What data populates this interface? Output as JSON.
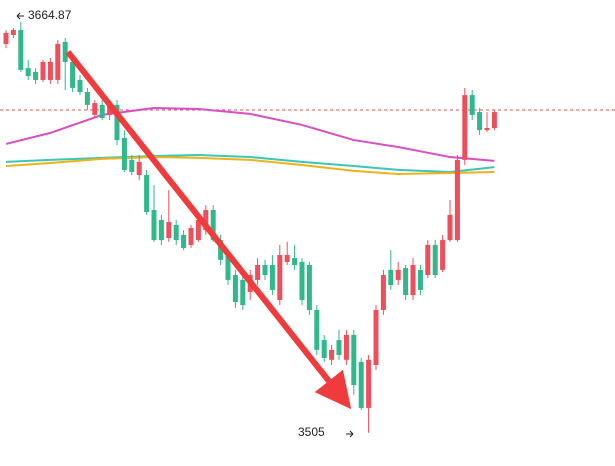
{
  "chart_data": {
    "type": "candlestick",
    "up_color": "#ef4f5b",
    "down_color": "#2fb88c",
    "ylim": [
      3492.1,
      3673.4
    ],
    "open": [
      3656.3,
      3659.8,
      3661.7,
      3646.9,
      3645.4,
      3642.3,
      3642.3,
      3642.3,
      3657.1,
      3649.3,
      3642.3,
      3637.6,
      3628.7,
      3632.6,
      3628.7,
      3632.6,
      3619.7,
      3611.2,
      3605.3,
      3605.3,
      3591.7,
      3587.8,
      3580.8,
      3585.9,
      3582.0,
      3578.1,
      3580.0,
      3583.9,
      3591.7,
      3580.0,
      3574.2,
      3566.4,
      3564.5,
      3559.8,
      3564.5,
      3570.3,
      3570.3,
      3556.7,
      3571.5,
      3573.0,
      3571.5,
      3570.3,
      3552.8,
      3541.1,
      3533.4,
      3541.1,
      3533.4,
      3543.1,
      3532.6,
      3514.7,
      3531.4,
      3552.8,
      3568.4,
      3564.5,
      3569.1,
      3558.6,
      3568.4,
      3566.4,
      3578.1,
      3568.4,
      3580.0,
      3580.0,
      3611.2,
      3636.4,
      3629.8,
      3622.8,
      3623.6
    ],
    "high": [
      3661.7,
      3662.5,
      3664.87,
      3650.1,
      3646.9,
      3650.1,
      3650.8,
      3657.8,
      3658.6,
      3650.8,
      3644.2,
      3639.2,
      3634.5,
      3634.5,
      3634.5,
      3634.5,
      3622.8,
      3613.1,
      3613.1,
      3607.3,
      3601.4,
      3589.8,
      3599.5,
      3587.8,
      3583.9,
      3585.9,
      3589.8,
      3593.6,
      3593.6,
      3582.0,
      3576.1,
      3568.4,
      3566.4,
      3568.4,
      3573.0,
      3572.3,
      3574.2,
      3578.1,
      3579.3,
      3578.1,
      3573.0,
      3571.5,
      3554.7,
      3543.1,
      3539.2,
      3545.0,
      3545.0,
      3545.0,
      3534.1,
      3535.3,
      3554.7,
      3568.4,
      3576.1,
      3571.5,
      3570.3,
      3573.0,
      3570.3,
      3580.0,
      3580.0,
      3582.0,
      3595.6,
      3613.1,
      3639.2,
      3638.4,
      3631.4,
      3629.8,
      3630.6
    ],
    "low": [
      3654.7,
      3658.6,
      3645.4,
      3642.3,
      3640.7,
      3641.5,
      3640.7,
      3640.7,
      3638.4,
      3637.6,
      3636.4,
      3630.6,
      3627.5,
      3626.7,
      3626.7,
      3617.0,
      3606.5,
      3605.3,
      3603.4,
      3589.8,
      3579.3,
      3578.1,
      3579.3,
      3578.1,
      3576.1,
      3576.9,
      3579.3,
      3582.0,
      3579.3,
      3570.3,
      3562.5,
      3553.6,
      3552.8,
      3556.7,
      3562.5,
      3564.5,
      3558.6,
      3554.7,
      3570.3,
      3568.4,
      3554.7,
      3550.9,
      3535.3,
      3532.6,
      3531.4,
      3533.4,
      3531.4,
      3519.8,
      3513.9,
      3505.0,
      3529.5,
      3550.9,
      3560.6,
      3562.5,
      3556.7,
      3556.7,
      3558.6,
      3565.3,
      3565.3,
      3567.6,
      3579.3,
      3579.3,
      3609.2,
      3626.7,
      3620.9,
      3622.0,
      3622.8
    ],
    "close": [
      3660.6,
      3661.7,
      3646.2,
      3643.8,
      3642.3,
      3649.3,
      3649.3,
      3656.3,
      3649.3,
      3639.2,
      3637.6,
      3632.6,
      3633.3,
      3627.5,
      3632.6,
      3618.9,
      3607.3,
      3606.5,
      3610.4,
      3590.9,
      3580.0,
      3580.0,
      3587.0,
      3580.0,
      3576.9,
      3584.7,
      3587.8,
      3591.7,
      3580.0,
      3572.3,
      3564.5,
      3555.9,
      3554.7,
      3566.4,
      3570.3,
      3566.4,
      3560.6,
      3574.2,
      3574.2,
      3570.3,
      3556.7,
      3552.8,
      3537.3,
      3534.1,
      3537.3,
      3535.3,
      3543.1,
      3523.6,
      3514.7,
      3533.4,
      3552.8,
      3566.4,
      3562.5,
      3568.4,
      3558.6,
      3570.3,
      3560.6,
      3578.1,
      3566.4,
      3580.0,
      3589.8,
      3611.2,
      3636.4,
      3628.7,
      3622.8,
      3623.6,
      3629.8
    ],
    "series": [
      {
        "color": "#d94fc4",
        "x": [
          0,
          6,
          13,
          20,
          26,
          33,
          40,
          47,
          53,
          60,
          66
        ],
        "values": [
          3617.4,
          3621.7,
          3628.7,
          3631.4,
          3631.0,
          3629.1,
          3624.8,
          3618.9,
          3616.2,
          3612.3,
          3610.8
        ]
      },
      {
        "color": "#3cc6b6",
        "x": [
          0,
          6,
          13,
          20,
          26,
          33,
          40,
          47,
          53,
          60,
          66
        ],
        "values": [
          3610.4,
          3611.2,
          3612.0,
          3612.7,
          3613.1,
          3612.3,
          3610.4,
          3608.8,
          3607.3,
          3606.5,
          3608.4
        ]
      },
      {
        "color": "#f0b21a",
        "x": [
          0,
          6,
          13,
          20,
          26,
          33,
          40,
          47,
          53,
          60,
          66
        ],
        "values": [
          3608.8,
          3610.0,
          3611.6,
          3612.3,
          3612.0,
          3611.2,
          3609.2,
          3606.9,
          3605.7,
          3606.1,
          3606.5
        ]
      }
    ],
    "reference_line": 3630.6,
    "reference_color": "#e0505a"
  }
}
